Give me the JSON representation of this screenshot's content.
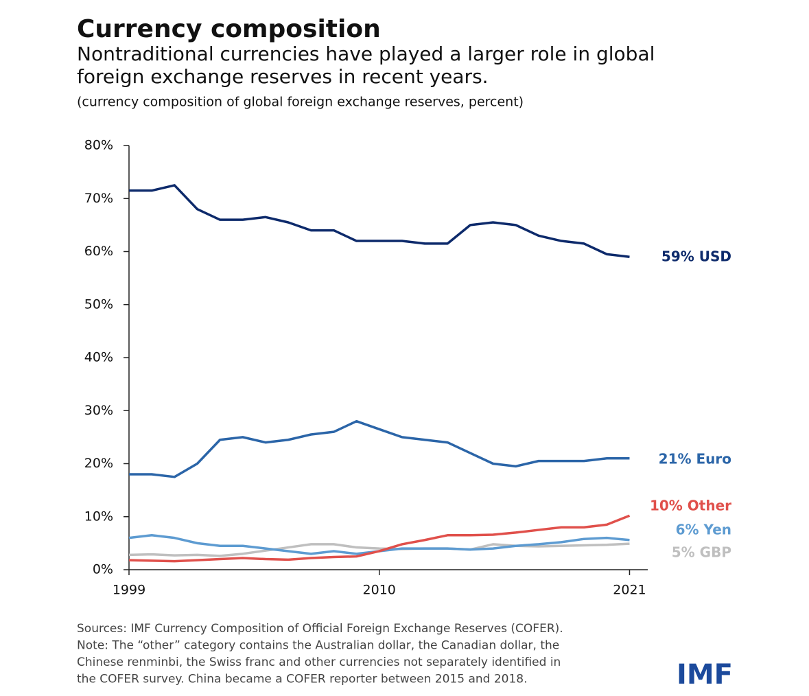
{
  "chart_data": {
    "type": "line",
    "title": "Currency composition",
    "subtitle": [
      "Nontraditional currencies have played a larger role in global",
      "foreign exchange reserves in recent years."
    ],
    "unit_note": "(currency composition of global foreign exchange reserves, percent)",
    "x": [
      1999,
      2000,
      2001,
      2002,
      2003,
      2004,
      2005,
      2006,
      2007,
      2008,
      2009,
      2010,
      2011,
      2012,
      2013,
      2014,
      2015,
      2016,
      2017,
      2018,
      2019,
      2020,
      2021
    ],
    "xlim": [
      1999,
      2021.8
    ],
    "xticks": [
      1999,
      2010,
      2021
    ],
    "ylim": [
      0,
      80
    ],
    "yticks": [
      {
        "value": 0,
        "label": "0%"
      },
      {
        "value": 10,
        "label": "10%"
      },
      {
        "value": 20,
        "label": "20%"
      },
      {
        "value": 30,
        "label": "30%"
      },
      {
        "value": 40,
        "label": "40%"
      },
      {
        "value": 50,
        "label": "50%"
      },
      {
        "value": 60,
        "label": "60%"
      },
      {
        "value": 70,
        "label": "70%"
      },
      {
        "value": 80,
        "label": "80%"
      }
    ],
    "grid": false,
    "series": [
      {
        "name": "59% USD",
        "color": "#0d2a6b",
        "values": [
          71.5,
          71.5,
          72.5,
          68,
          66,
          66,
          66.5,
          65.5,
          64,
          64,
          62,
          62,
          62,
          61.5,
          61.5,
          65,
          65.5,
          65,
          63,
          62,
          61.5,
          59.5,
          59
        ]
      },
      {
        "name": "21% Euro",
        "color": "#2b65a8",
        "values": [
          18,
          18,
          17.5,
          20,
          24.5,
          25,
          24,
          24.5,
          25.5,
          26,
          28,
          26.5,
          25,
          24.5,
          24,
          22,
          20,
          19.5,
          20.5,
          20.5,
          20.5,
          21,
          21
        ]
      },
      {
        "name": "10% Other",
        "color": "#e0504b",
        "values": [
          1.8,
          1.7,
          1.6,
          1.8,
          2,
          2.2,
          2,
          1.9,
          2.2,
          2.4,
          2.5,
          3.5,
          4.8,
          5.6,
          6.5,
          6.5,
          6.6,
          7,
          7.5,
          8,
          8,
          8.5,
          10.2
        ]
      },
      {
        "name": "6% Yen",
        "color": "#5d9bd1",
        "values": [
          6,
          6.5,
          6,
          5,
          4.5,
          4.5,
          4,
          3.5,
          3,
          3.5,
          3,
          3.5,
          4,
          4,
          4,
          3.8,
          4,
          4.5,
          4.8,
          5.2,
          5.8,
          6,
          5.6
        ]
      },
      {
        "name": "5% GBP",
        "color": "#bfbfbf",
        "values": [
          2.8,
          2.9,
          2.7,
          2.8,
          2.6,
          3,
          3.6,
          4.2,
          4.8,
          4.8,
          4.2,
          4,
          3.9,
          4,
          4,
          3.8,
          4.8,
          4.5,
          4.4,
          4.5,
          4.6,
          4.7,
          4.9
        ]
      }
    ],
    "notes": [
      "Sources: IMF Currency Composition of Official Foreign Exchange Reserves (COFER).",
      "Note: The “other” category contains the Australian dollar, the Canadian dollar, the",
      "Chinese renminbi, the Swiss franc and other currencies not separately identified in",
      "the COFER survey. China became a COFER reporter between 2015 and 2018."
    ],
    "logo": "IMF"
  }
}
